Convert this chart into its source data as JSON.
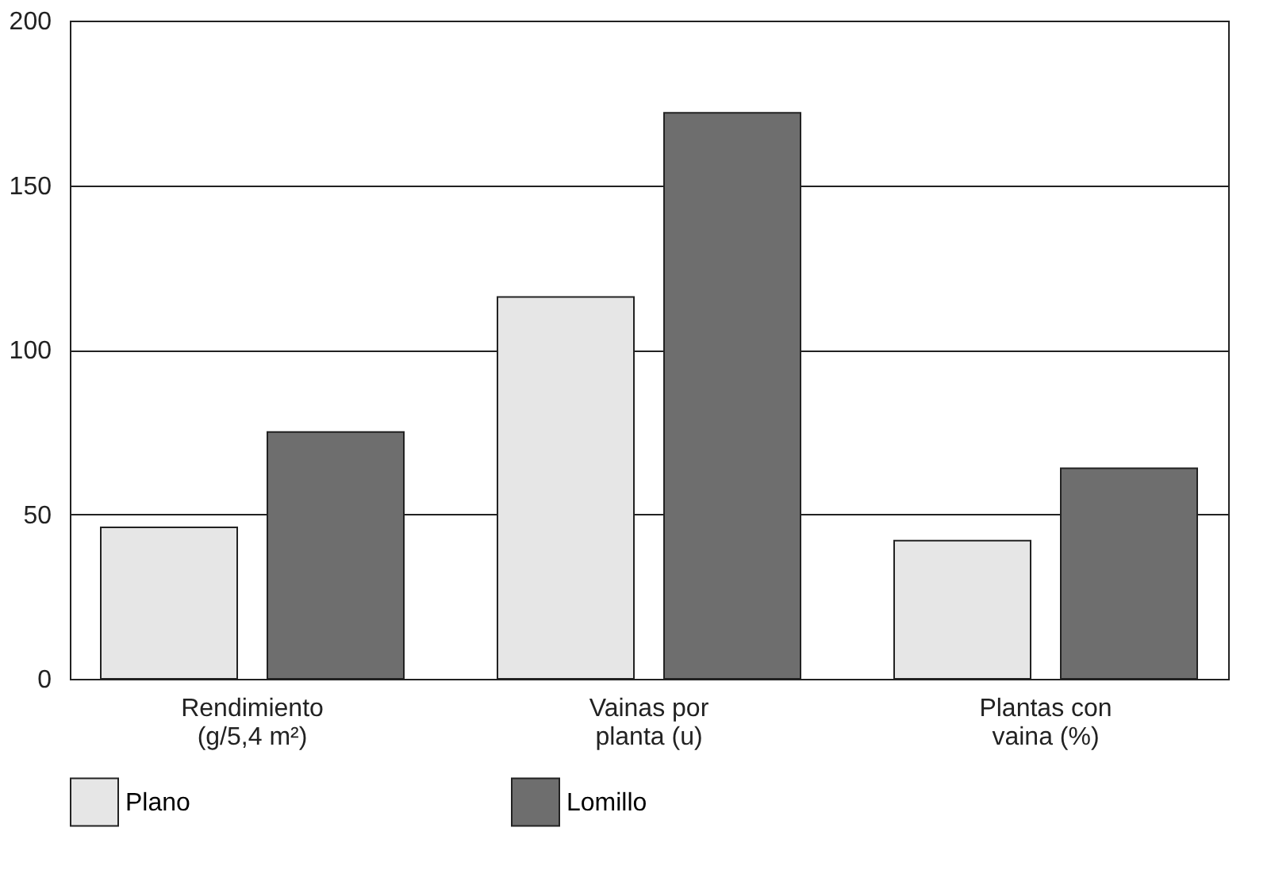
{
  "chart_data": {
    "type": "bar",
    "categories": [
      "Rendimiento\n(g/5,4 m²)",
      "Vainas por\nplanta (u)",
      "Plantas con\nvaina (%)"
    ],
    "series": [
      {
        "name": "Plano",
        "color": "#e6e6e6",
        "values": [
          46,
          116,
          42
        ]
      },
      {
        "name": "Lomillo",
        "color": "#6e6e6e",
        "values": [
          75,
          172,
          64
        ]
      }
    ],
    "ylim": [
      0,
      200
    ],
    "yticks": [
      0,
      50,
      100,
      150,
      200
    ],
    "grid": "y",
    "legend": "bottom"
  }
}
